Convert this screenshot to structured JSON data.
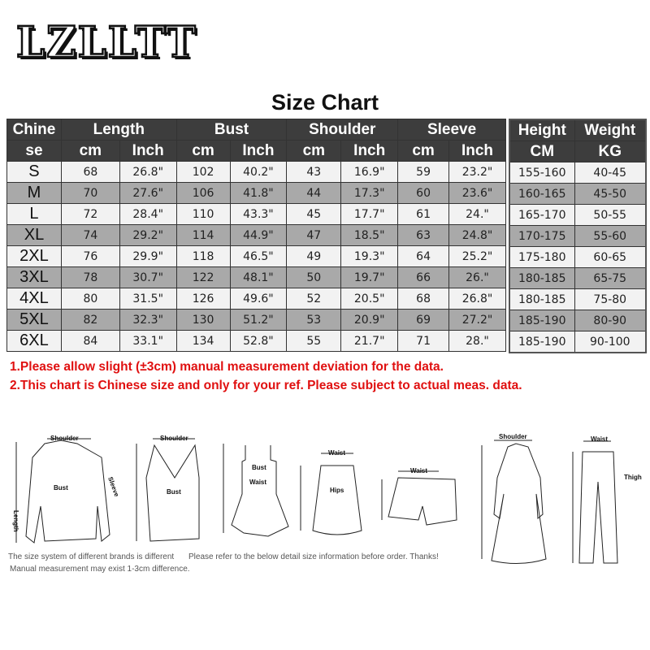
{
  "brand_logo": "LZLLTT",
  "title": "Size Chart",
  "table": {
    "size_header": [
      "Chine",
      "se"
    ],
    "groups": [
      "Length",
      "Bust",
      "Shoulder",
      "Sleeve"
    ],
    "sub_headers": [
      "cm",
      "Inch",
      "cm",
      "Inch",
      "cm",
      "Inch",
      "cm",
      "Inch"
    ],
    "rows": [
      {
        "size": "S",
        "values": [
          "68",
          "26.8\"",
          "102",
          "40.2\"",
          "43",
          "16.9\"",
          "59",
          "23.2\""
        ]
      },
      {
        "size": "M",
        "values": [
          "70",
          "27.6\"",
          "106",
          "41.8\"",
          "44",
          "17.3\"",
          "60",
          "23.6\""
        ]
      },
      {
        "size": "L",
        "values": [
          "72",
          "28.4\"",
          "110",
          "43.3\"",
          "45",
          "17.7\"",
          "61",
          "24.\""
        ]
      },
      {
        "size": "XL",
        "values": [
          "74",
          "29.2\"",
          "114",
          "44.9\"",
          "47",
          "18.5\"",
          "63",
          "24.8\""
        ]
      },
      {
        "size": "2XL",
        "values": [
          "76",
          "29.9\"",
          "118",
          "46.5\"",
          "49",
          "19.3\"",
          "64",
          "25.2\""
        ]
      },
      {
        "size": "3XL",
        "values": [
          "78",
          "30.7\"",
          "122",
          "48.1\"",
          "50",
          "19.7\"",
          "66",
          "26.\""
        ]
      },
      {
        "size": "4XL",
        "values": [
          "80",
          "31.5\"",
          "126",
          "49.6\"",
          "52",
          "20.5\"",
          "68",
          "26.8\""
        ]
      },
      {
        "size": "5XL",
        "values": [
          "82",
          "32.3\"",
          "130",
          "51.2\"",
          "53",
          "20.9\"",
          "69",
          "27.2\""
        ]
      },
      {
        "size": "6XL",
        "values": [
          "84",
          "33.1\"",
          "134",
          "52.8\"",
          "55",
          "21.7\"",
          "71",
          "28.\""
        ]
      }
    ]
  },
  "hw_table": {
    "headers": [
      "Height",
      "Weight"
    ],
    "units": [
      "CM",
      "KG"
    ],
    "rows": [
      [
        "155-160",
        "40-45"
      ],
      [
        "160-165",
        "45-50"
      ],
      [
        "165-170",
        "50-55"
      ],
      [
        "170-175",
        "55-60"
      ],
      [
        "175-180",
        "60-65"
      ],
      [
        "180-185",
        "65-75"
      ],
      [
        "180-185",
        "75-80"
      ],
      [
        "185-190",
        "80-90"
      ],
      [
        "185-190",
        "90-100"
      ]
    ]
  },
  "notes": [
    "1.Please allow slight   (±3cm)  manual measurement deviation for the data.",
    "2.This chart is Chinese size and only for your ref. Please subject to actual meas. data."
  ],
  "illustration_labels": {
    "shoulder": "Shoulder",
    "bust": "Bust",
    "length": "Length",
    "sleeve": "Sleeve",
    "waist": "Waist",
    "hips": "Hips",
    "thigh": "Thigh"
  },
  "footer": [
    "The size system of different brands is different",
    "Please refer to the below detail size information before order. Thanks!",
    "Manual measurement may exist 1-3cm difference."
  ],
  "colors": {
    "header_bg": "#3d3d3d",
    "row_light": "#f2f2f2",
    "row_dark": "#a9a9a9",
    "note_red": "#e01010"
  }
}
